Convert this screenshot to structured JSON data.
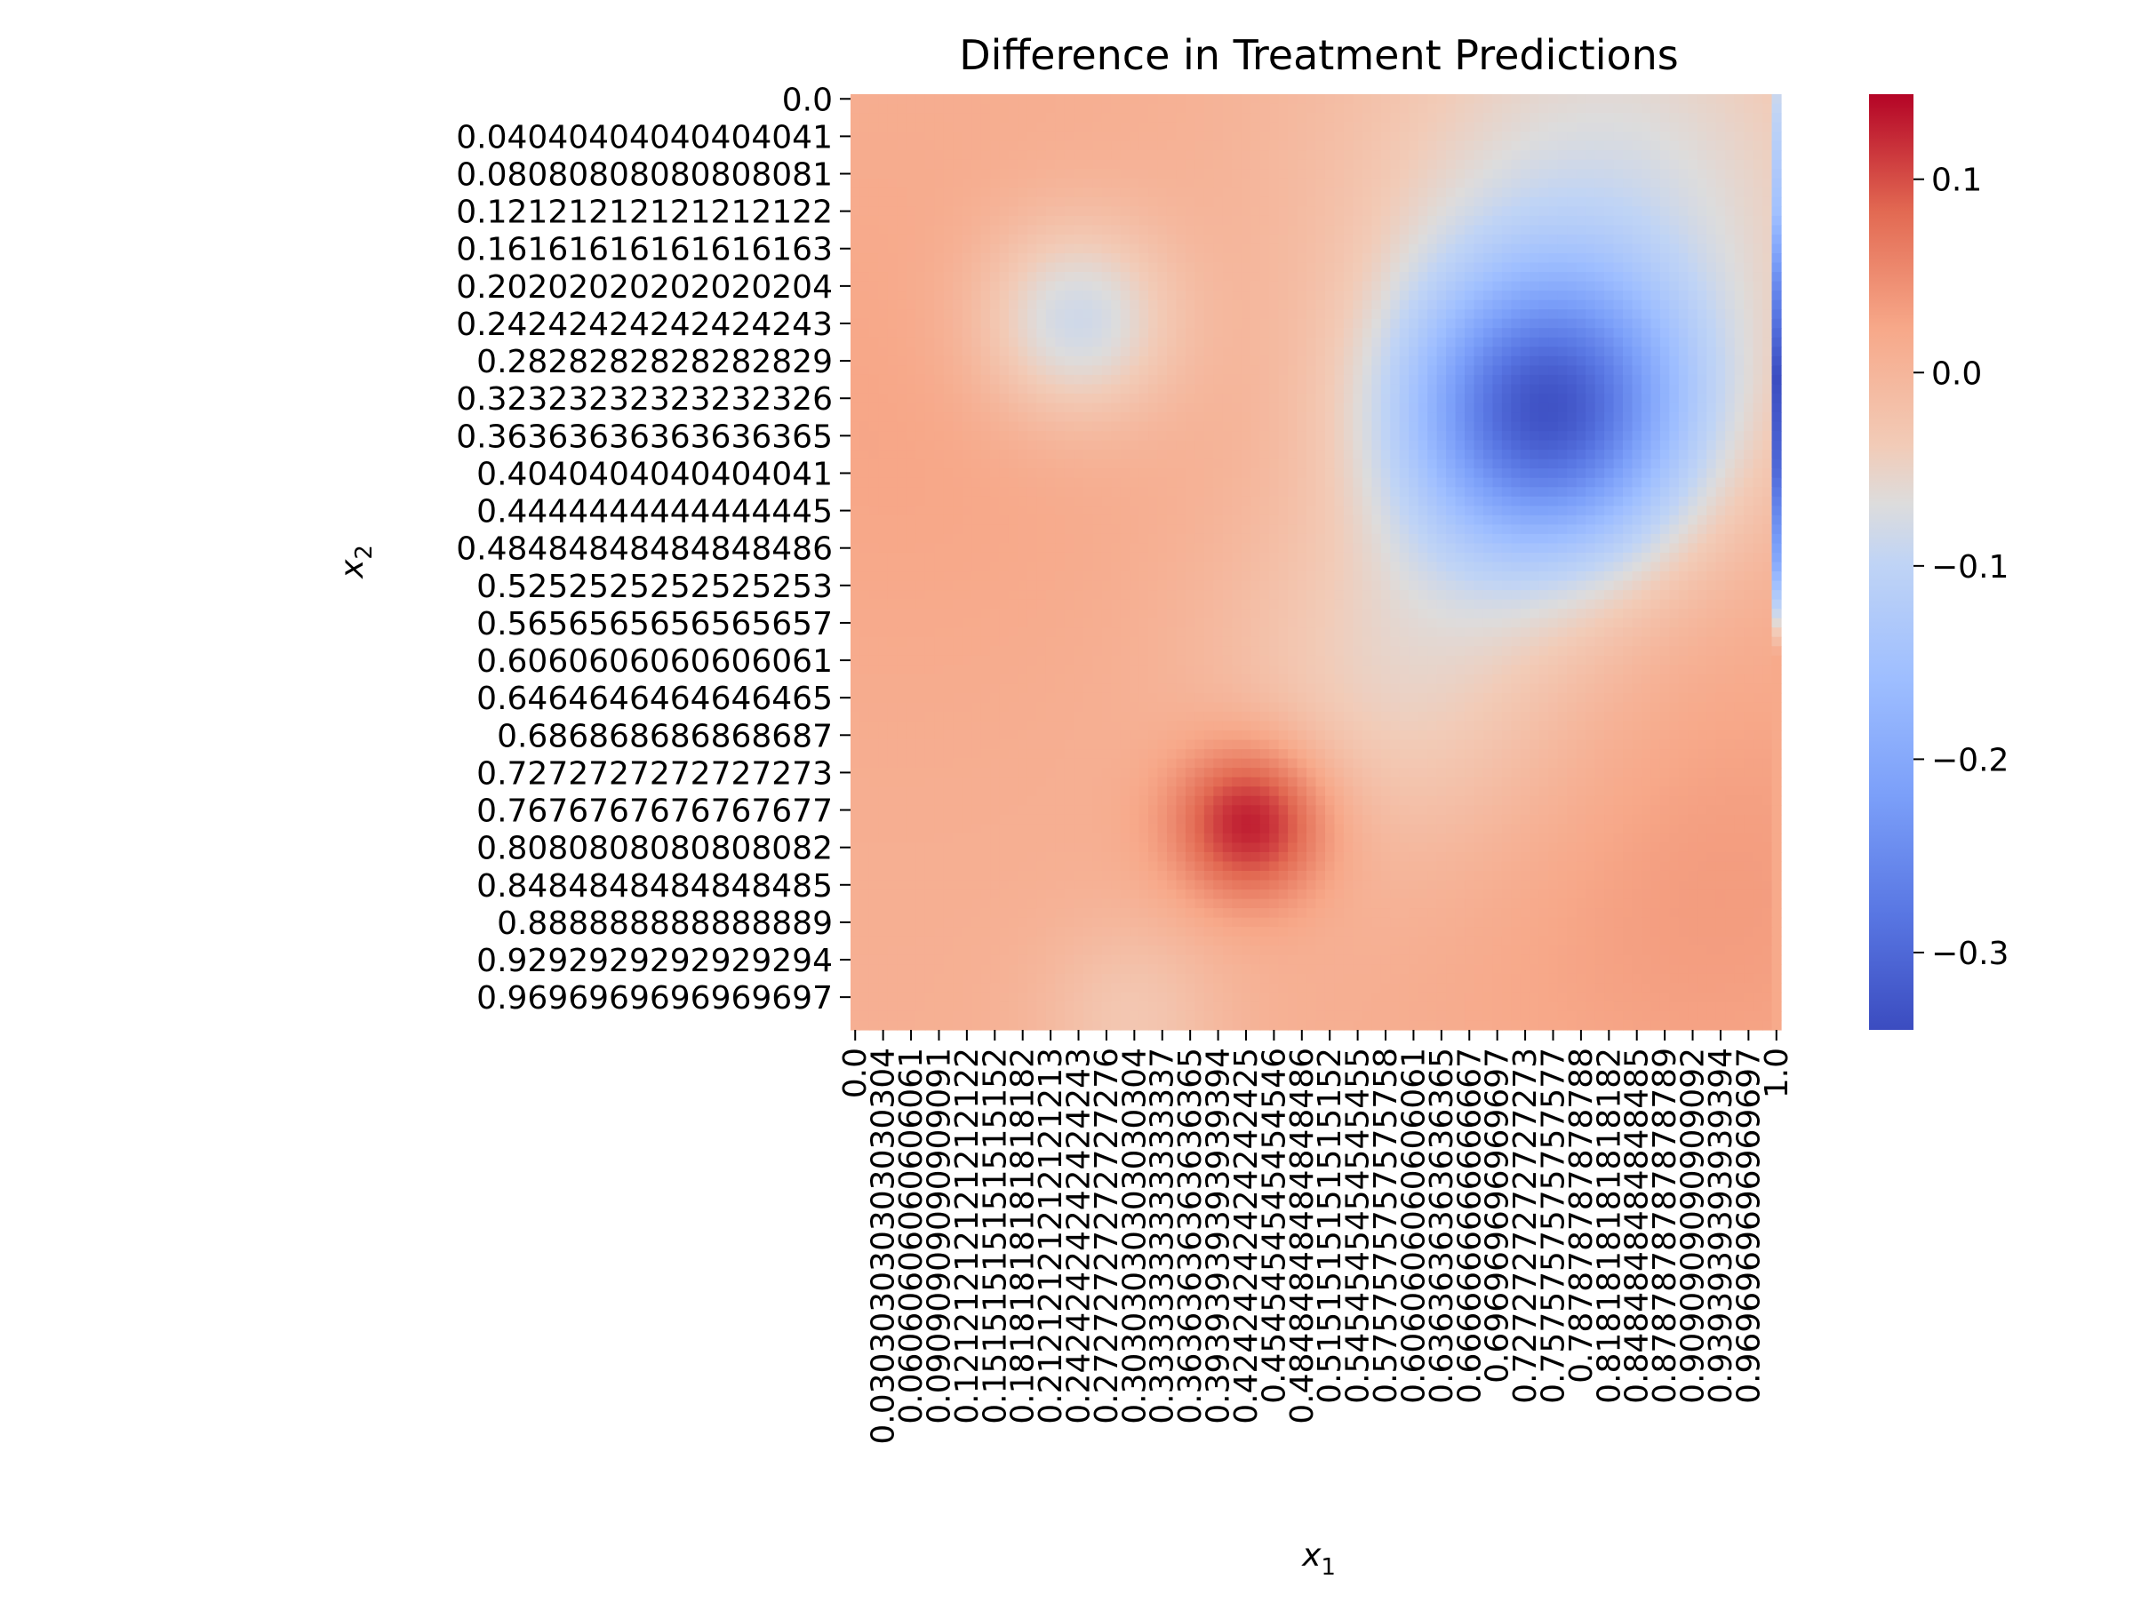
{
  "chart_data": {
    "type": "heatmap",
    "title": "Difference in Treatment Predictions",
    "xlabel": "x",
    "xlabel_sub": "1",
    "ylabel": "x",
    "ylabel_sub": "2",
    "grid_size": 100,
    "x_range": [
      0,
      1
    ],
    "y_range": [
      0,
      1
    ],
    "colormap": "coolwarm",
    "color_range": [
      -0.34,
      0.144
    ],
    "x_tick_labels": [
      "0.0",
      "0.030303030303030304",
      "0.06060606060606061",
      "0.09090909090909091",
      "0.12121212121212122",
      "0.15151515151515152",
      "0.18181818181818182",
      "0.21212121212121213",
      "0.24242424242424243",
      "0.27272727272727276",
      "0.30303030303030304",
      "0.33333333333333337",
      "0.36363636363636365",
      "0.39393939393939394",
      "0.42424242424242425",
      "0.4545454545454546",
      "0.48484848484848486",
      "0.5151515151515152",
      "0.5454545454545455",
      "0.5757575757575758",
      "0.6060606060606061",
      "0.6363636363636365",
      "0.6666666666666667",
      "0.696969696969697",
      "0.7272727272727273",
      "0.7575757575757577",
      "0.787878787878788",
      "0.8181818181818182",
      "0.8484848484848485",
      "0.8787878787878789",
      "0.9090909090909092",
      "0.9393939393939394",
      "0.9696969696969697",
      "1.0"
    ],
    "y_tick_labels": [
      "0.0",
      "0.04040404040404041",
      "0.08080808080808081",
      "0.12121212121212122",
      "0.16161616161616163",
      "0.20202020202020204",
      "0.24242424242424243",
      "0.2828282828282829",
      "0.32323232323232326",
      "0.36363636363636365",
      "0.4040404040404041",
      "0.4444444444444445",
      "0.48484848484848486",
      "0.5252525252525253",
      "0.5656565656565657",
      "0.6060606060606061",
      "0.6464646464646465",
      "0.686868686868687",
      "0.7272727272727273",
      "0.7676767676767677",
      "0.8080808080808082",
      "0.8484848484848485",
      "0.888888888888889",
      "0.9292929292929294",
      "0.9696969696969697"
    ],
    "colorbar_ticks": [
      {
        "value": 0.1,
        "label": "0.1"
      },
      {
        "value": 0.0,
        "label": "0.0"
      },
      {
        "value": -0.1,
        "label": "−0.1"
      },
      {
        "value": -0.2,
        "label": "−0.2"
      },
      {
        "value": -0.3,
        "label": "−0.3"
      }
    ],
    "surface": {
      "baseline": 0.01,
      "features": [
        {
          "kind": "bump",
          "x": 0.24,
          "y": 0.24,
          "sigma": 0.075,
          "amplitude": -0.1
        },
        {
          "kind": "bump",
          "x": 0.75,
          "y": 0.34,
          "sigma": 0.11,
          "amplitude": -0.3
        },
        {
          "kind": "bump",
          "x": 0.43,
          "y": 0.78,
          "sigma": 0.06,
          "amplitude": 0.13
        },
        {
          "kind": "bump",
          "x": 0.82,
          "y": 0.1,
          "sigma": 0.2,
          "amplitude": -0.08
        },
        {
          "kind": "bump",
          "x": 0.6,
          "y": 0.62,
          "sigma": 0.14,
          "amplitude": -0.06
        },
        {
          "kind": "bump",
          "x": 0.92,
          "y": 0.85,
          "sigma": 0.2,
          "amplitude": 0.025
        },
        {
          "kind": "bump",
          "x": 0.05,
          "y": 0.35,
          "sigma": 0.22,
          "amplitude": 0.015
        },
        {
          "kind": "bump",
          "x": 0.3,
          "y": 0.99,
          "sigma": 0.07,
          "amplitude": -0.04
        },
        {
          "kind": "edge_column",
          "x_index": 99,
          "values_by_y": [
            {
              "y": 0.0,
              "value": -0.09
            },
            {
              "y": 0.12,
              "value": -0.15
            },
            {
              "y": 0.2,
              "value": -0.25
            },
            {
              "y": 0.3,
              "value": -0.34
            },
            {
              "y": 0.4,
              "value": -0.3
            },
            {
              "y": 0.5,
              "value": -0.2
            },
            {
              "y": 0.55,
              "value": -0.1
            },
            {
              "y": 0.6,
              "value": 0.02
            },
            {
              "y": 1.0,
              "value": 0.02
            }
          ]
        }
      ]
    }
  }
}
